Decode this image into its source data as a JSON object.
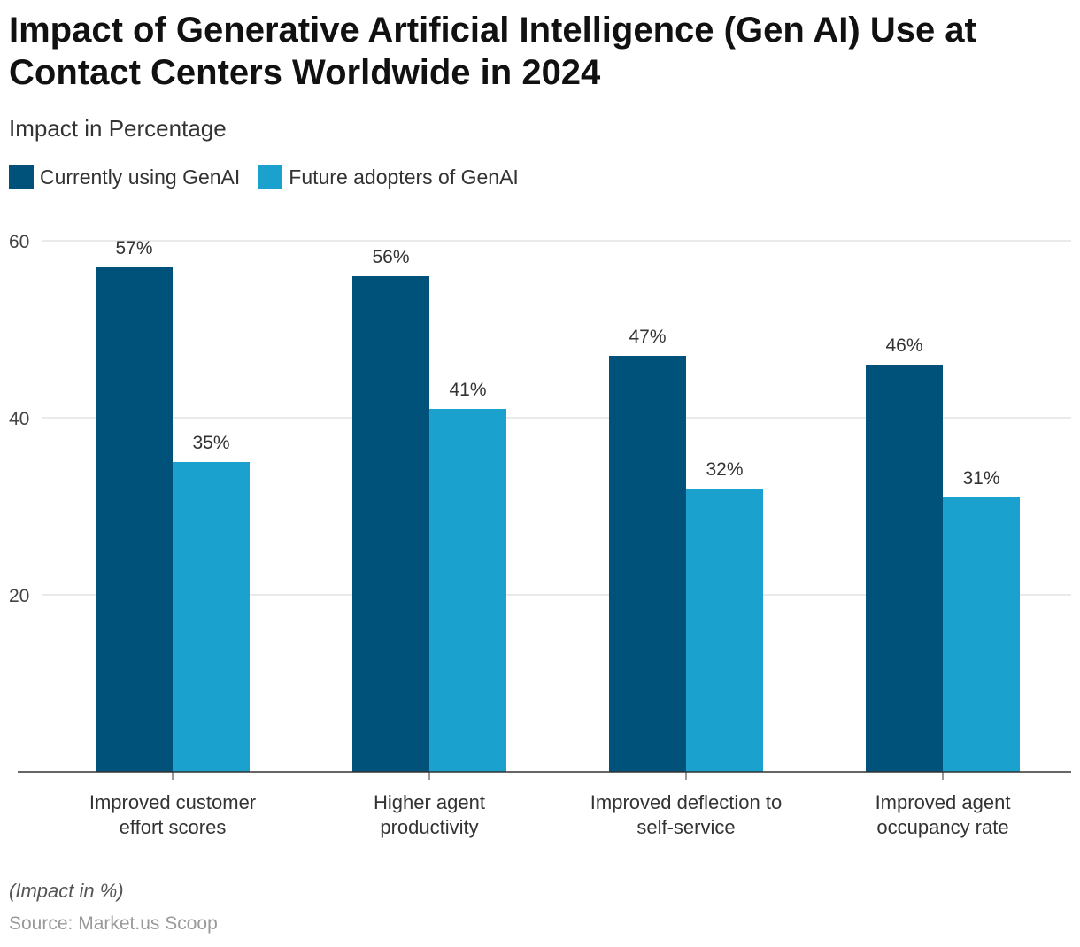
{
  "chart_data": {
    "type": "bar",
    "title": "Impact of Generative Artificial Intelligence (Gen AI) Use at Contact Centers Worldwide in 2024",
    "subtitle": "Impact in Percentage",
    "categories": [
      [
        "Improved customer",
        "effort scores"
      ],
      [
        "Higher agent",
        "productivity"
      ],
      [
        "Improved deflection to",
        "self-service"
      ],
      [
        "Improved agent",
        "occupancy rate"
      ]
    ],
    "series": [
      {
        "name": "Currently using GenAI",
        "color": "#00527A",
        "values": [
          57,
          56,
          47,
          46
        ],
        "labels": [
          "57%",
          "56%",
          "47%",
          "46%"
        ]
      },
      {
        "name": "Future adopters of GenAI",
        "color": "#1AA1CE",
        "values": [
          35,
          41,
          32,
          31
        ],
        "labels": [
          "35%",
          "41%",
          "32%",
          "31%"
        ]
      }
    ],
    "ylim": [
      0,
      60
    ],
    "yticks": [
      20,
      40,
      60
    ],
    "grid": true,
    "legend": "top-left",
    "note": "(Impact in %)",
    "source": "Source: Market.us Scoop"
  }
}
